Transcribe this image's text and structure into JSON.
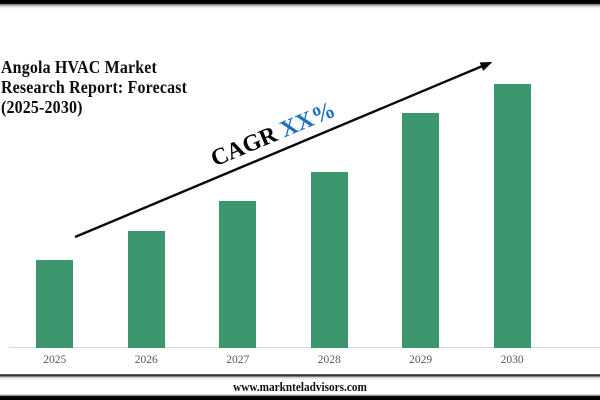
{
  "header": {
    "title_lines": [
      "Angola HVAC Market",
      "Research Report: Forecast",
      "(2025-2030)"
    ]
  },
  "annotation": {
    "cagr_label": "CAGR ",
    "cagr_value": "XX%",
    "label_color": "#000000",
    "value_color": "#1b70c4"
  },
  "footer": {
    "website": "www.marknteladvisors.com"
  },
  "chart_data": {
    "type": "bar",
    "title": "Angola HVAC Market Research Report: Forecast (2025-2030)",
    "categories": [
      "2025",
      "2026",
      "2027",
      "2028",
      "2029",
      "2030"
    ],
    "values": [
      3,
      4,
      5,
      6,
      8,
      9
    ],
    "values_note": "relative bar heights; no y-axis or value labels shown",
    "bar_color": "#3c966e",
    "xlabel": "",
    "ylabel": "",
    "grid": false,
    "legend": false,
    "annotation_text": "CAGR XX%",
    "trend_arrow": "diagonal up-right across bars"
  }
}
